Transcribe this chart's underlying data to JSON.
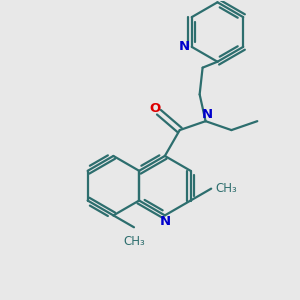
{
  "bg_color": "#e8e8e8",
  "bond_color": "#2d6e6e",
  "n_color": "#0000cc",
  "o_color": "#dd0000",
  "bond_width": 1.6,
  "font_size": 8.5,
  "fig_width": 3.0,
  "fig_height": 3.0,
  "dpi": 100,
  "xlim": [
    0,
    10
  ],
  "ylim": [
    0,
    10
  ]
}
